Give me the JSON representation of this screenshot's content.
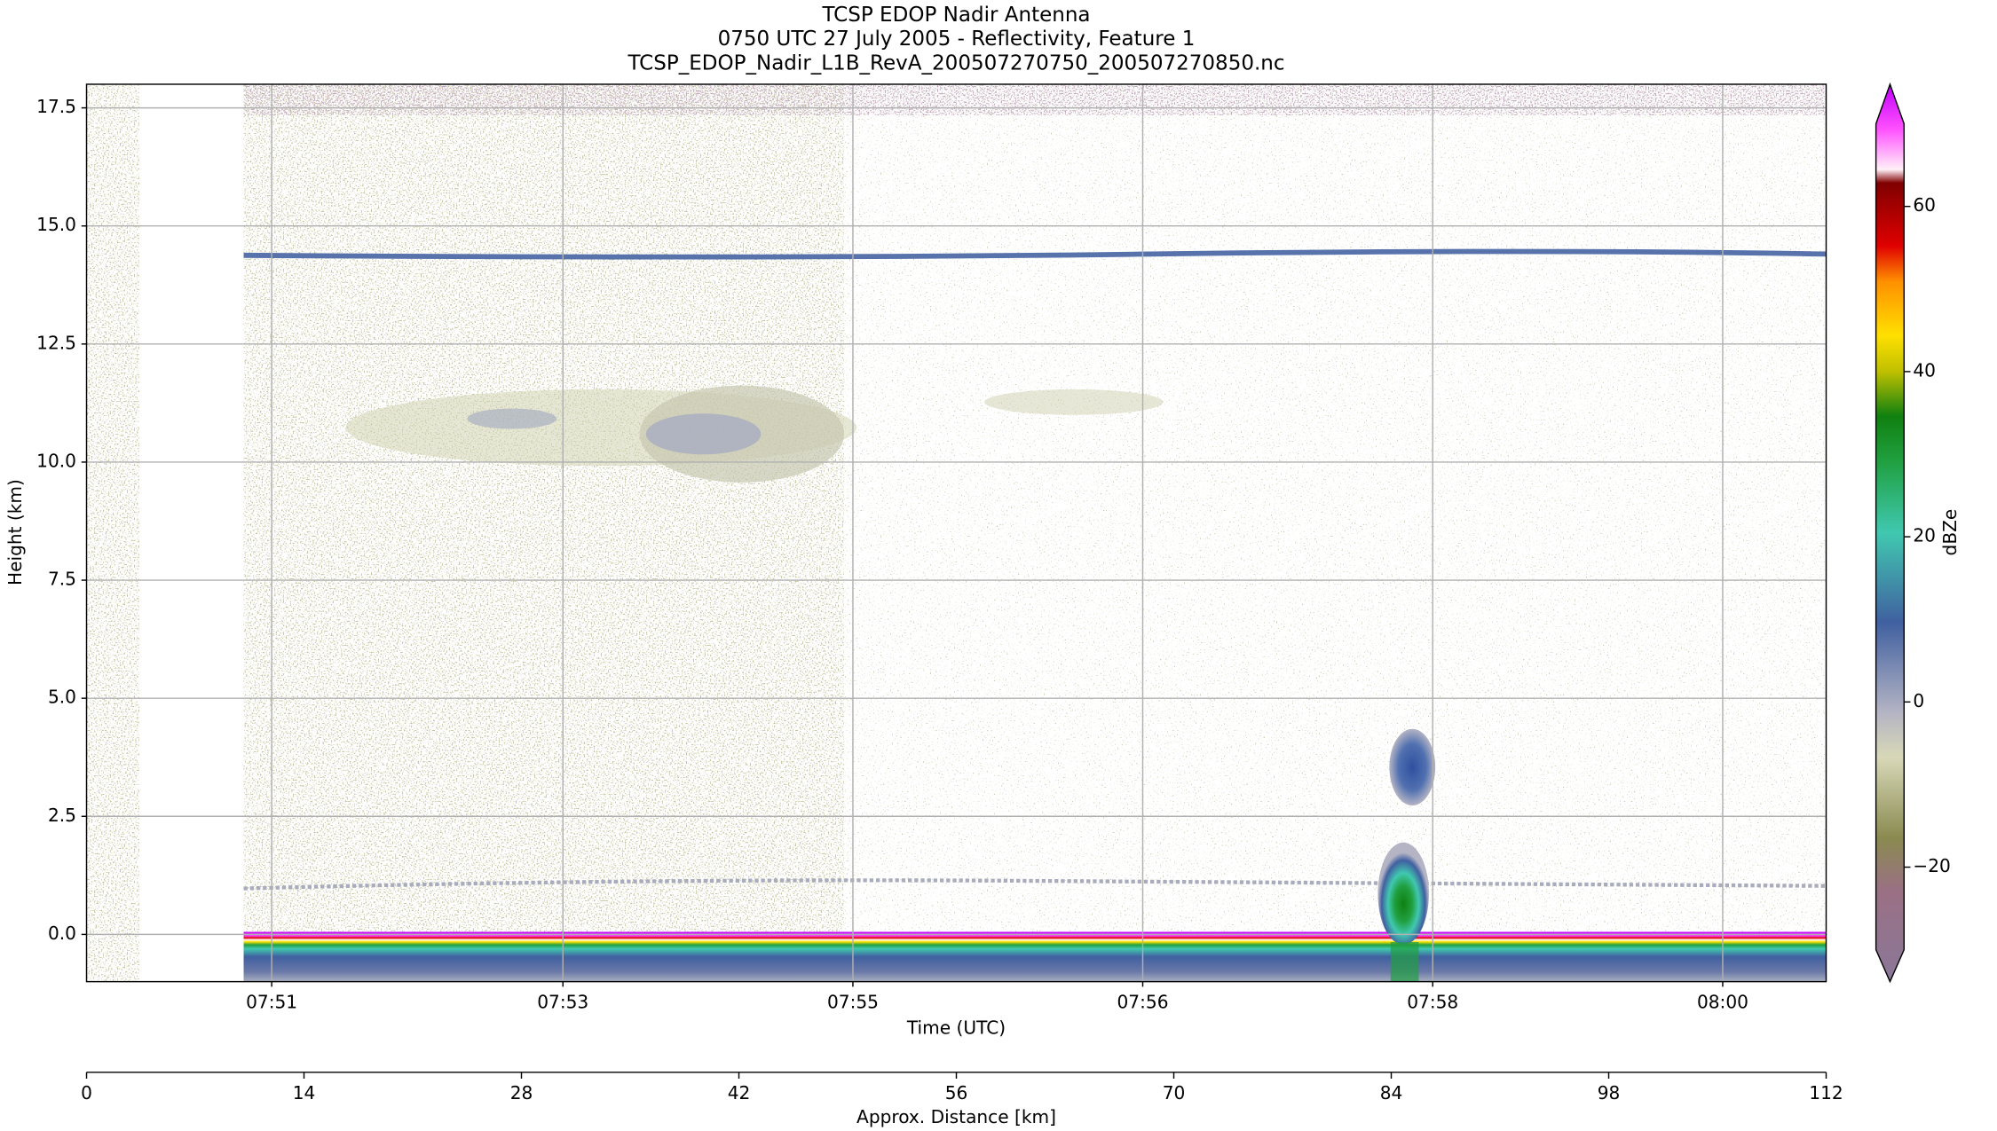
{
  "chart_data": {
    "type": "radar-image",
    "title": "TCSP EDOP Nadir Antenna",
    "subtitle": "0750 UTC 27 July 2005 - Reflectivity, Feature 1",
    "filename": "TCSP_EDOP_Nadir_L1B_RevA_200507270750_200507270850.nc",
    "ylabel": "Height (km)",
    "xlabel": "Time (UTC)",
    "x2label": "Approx. Distance [km]",
    "colorbar_label": "dBZe",
    "xlim": [
      0,
      112
    ],
    "xticks": [
      {
        "value": 11.92,
        "label": "07:51"
      },
      {
        "value": 30.67,
        "label": "07:53"
      },
      {
        "value": 49.34,
        "label": "07:55"
      },
      {
        "value": 68.0,
        "label": "07:56"
      },
      {
        "value": 86.67,
        "label": "07:58"
      },
      {
        "value": 105.34,
        "label": "08:00"
      }
    ],
    "x2ticks": [
      0,
      14,
      28,
      42,
      56,
      70,
      84,
      98,
      112
    ],
    "ylim": [
      -1,
      18
    ],
    "yticks": [
      {
        "value": 0,
        "label": "0.0"
      },
      2.5,
      {
        "value": 5,
        "label": "5.0"
      },
      7.5,
      {
        "value": 10,
        "label": "10.0"
      },
      12.5,
      {
        "value": 15,
        "label": "15.0"
      },
      17.5
    ],
    "clim": [
      -30,
      70
    ],
    "cticks": [
      {
        "value": -20,
        "label": "−20"
      },
      0,
      20,
      40,
      60
    ],
    "grid": true
  }
}
